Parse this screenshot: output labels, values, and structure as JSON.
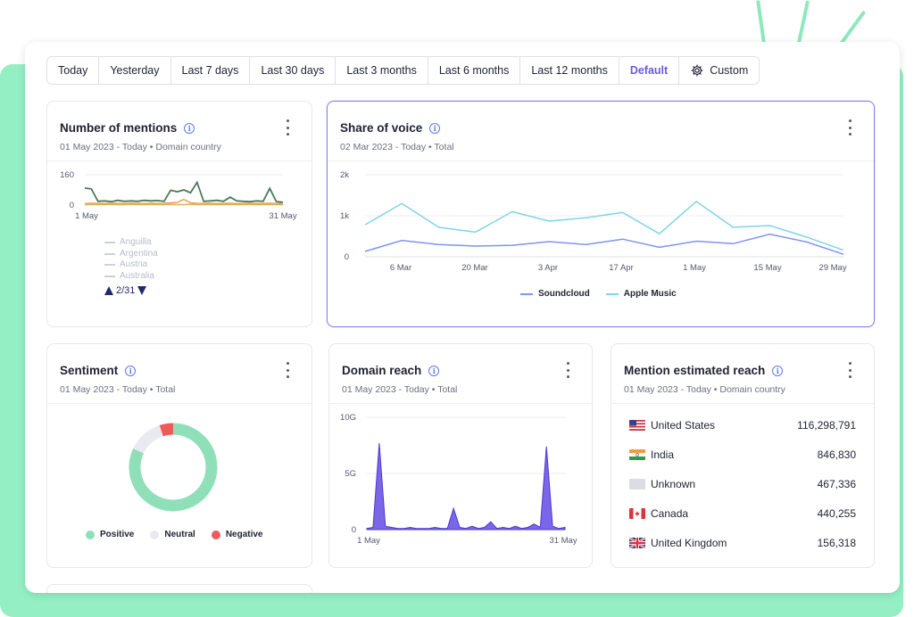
{
  "range_bar": {
    "buttons": [
      "Today",
      "Yesterday",
      "Last 7 days",
      "Last 30 days",
      "Last 3 months",
      "Last 6 months",
      "Last 12 months",
      "Default",
      "Custom"
    ],
    "active": "Default"
  },
  "mentions": {
    "title": "Number of mentions",
    "subtitle": "01 May 2023 - Today • Domain country",
    "legend": [
      "Anguilla",
      "Argentina",
      "Austria",
      "Australia"
    ],
    "pager": "2/31"
  },
  "sov": {
    "title": "Share of voice",
    "subtitle": "02 Mar 2023 - Today • Total",
    "legend": [
      "Soundcloud",
      "Apple Music"
    ]
  },
  "sentiment": {
    "title": "Sentiment",
    "subtitle": "01 May 2023 - Today • Total",
    "legend": [
      "Positive",
      "Neutral",
      "Negative"
    ]
  },
  "domain_reach": {
    "title": "Domain reach",
    "subtitle": "01 May 2023 - Today • Total"
  },
  "mention_reach": {
    "title": "Mention estimated reach",
    "subtitle": "01 May 2023 - Today • Domain country",
    "rows": [
      {
        "country": "United States",
        "value": "116,298,791",
        "flag": "us"
      },
      {
        "country": "India",
        "value": "846,830",
        "flag": "in"
      },
      {
        "country": "Unknown",
        "value": "467,336",
        "flag": "unknown"
      },
      {
        "country": "Canada",
        "value": "440,255",
        "flag": "ca"
      },
      {
        "country": "United Kingdom",
        "value": "156,318",
        "flag": "gb"
      }
    ]
  },
  "colors": {
    "accent": "#6a5ae0",
    "soundcloud": "#7f93f0",
    "apple_music": "#7fd4e8",
    "positive": "#8fe0b8",
    "neutral": "#e9eaf0",
    "negative": "#ee5b5b",
    "mentions_main": "#4a7a5a",
    "mentions_secondary": "#f29a5a",
    "domain_reach": "#6a55e6"
  },
  "chart_data": [
    {
      "type": "line",
      "name": "Number of mentions",
      "x_labels": [
        "1 May",
        "31 May"
      ],
      "ylim": [
        0,
        160
      ],
      "yticks": [
        0,
        160
      ],
      "series": [
        {
          "name": "Anguilla",
          "values": [
            90,
            85,
            20,
            22,
            18,
            25,
            20,
            22,
            20,
            25,
            22,
            24,
            20,
            78,
            70,
            80,
            65,
            120,
            20,
            22,
            25,
            20,
            42,
            22,
            20,
            18,
            22,
            20,
            88,
            18,
            15
          ]
        },
        {
          "name": "Argentina",
          "values": [
            8,
            10,
            9,
            8,
            10,
            9,
            8,
            10,
            9,
            8,
            10,
            9,
            10,
            12,
            14,
            30,
            12,
            10,
            9,
            10,
            8,
            9,
            10,
            8,
            9,
            10,
            8,
            9,
            10,
            8,
            9
          ]
        },
        {
          "name": "Austria",
          "values": [
            3,
            4,
            3,
            3,
            4,
            3,
            3,
            4,
            3,
            3,
            4,
            3,
            3,
            4,
            3,
            3,
            4,
            3,
            3,
            4,
            3,
            3,
            4,
            3,
            3,
            4,
            3,
            3,
            4,
            3,
            3
          ]
        }
      ]
    },
    {
      "type": "line",
      "name": "Share of voice",
      "x_labels": [
        "6 Mar",
        "20 Mar",
        "3 Apr",
        "17 Apr",
        "1 May",
        "15 May",
        "29 May"
      ],
      "yticks": [
        "0",
        "1k",
        "2k"
      ],
      "ylim": [
        0,
        2000
      ],
      "series": [
        {
          "name": "Soundcloud",
          "values": [
            130,
            400,
            300,
            260,
            280,
            370,
            300,
            430,
            230,
            380,
            320,
            550,
            360,
            60
          ]
        },
        {
          "name": "Apple Music",
          "values": [
            780,
            1300,
            720,
            600,
            1100,
            870,
            950,
            1080,
            560,
            1350,
            720,
            760,
            480,
            160
          ]
        }
      ]
    },
    {
      "type": "pie",
      "name": "Sentiment",
      "series": [
        {
          "name": "Positive",
          "value": 82
        },
        {
          "name": "Neutral",
          "value": 13
        },
        {
          "name": "Negative",
          "value": 5
        }
      ]
    },
    {
      "type": "area",
      "name": "Domain reach",
      "x_labels": [
        "1 May",
        "31 May"
      ],
      "yticks": [
        "0",
        "5G",
        "10G"
      ],
      "ylim": [
        0,
        10
      ],
      "values": [
        0.1,
        0.2,
        7.7,
        0.3,
        0.2,
        0.1,
        0.1,
        0.2,
        0.1,
        0.1,
        0.1,
        0.2,
        0.1,
        0.1,
        1.9,
        0.2,
        0.1,
        0.3,
        0.1,
        0.2,
        0.7,
        0.1,
        0.2,
        0.1,
        0.3,
        0.1,
        0.2,
        0.5,
        0.2,
        7.4,
        0.3,
        0.1,
        0.2
      ]
    }
  ]
}
